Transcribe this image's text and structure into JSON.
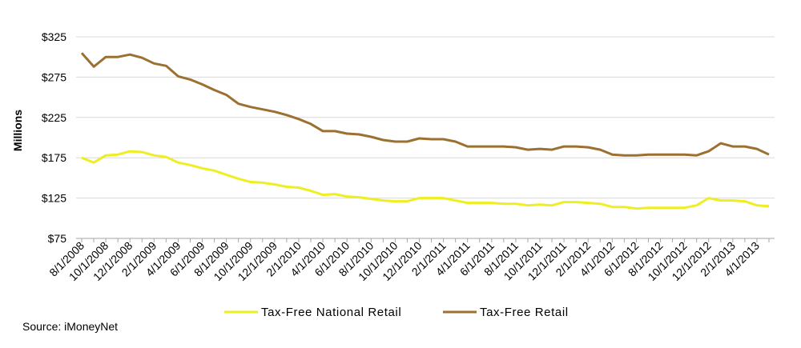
{
  "chart_data": {
    "type": "line",
    "ylabel": "Millions",
    "ylim": [
      75,
      325
    ],
    "yticks": [
      "$75",
      "$125",
      "$175",
      "$225",
      "$275",
      "$325"
    ],
    "ytick_values": [
      75,
      125,
      175,
      225,
      275,
      325
    ],
    "grid": "horizontal",
    "legend_position": "bottom",
    "x": [
      "8/1/2008",
      "9/1/2008",
      "10/1/2008",
      "11/1/2008",
      "12/1/2008",
      "1/1/2009",
      "2/1/2009",
      "3/1/2009",
      "4/1/2009",
      "5/1/2009",
      "6/1/2009",
      "7/1/2009",
      "8/1/2009",
      "9/1/2009",
      "10/1/2009",
      "11/1/2009",
      "12/1/2009",
      "1/1/2010",
      "2/1/2010",
      "3/1/2010",
      "4/1/2010",
      "5/1/2010",
      "6/1/2010",
      "7/1/2010",
      "8/1/2010",
      "9/1/2010",
      "10/1/2010",
      "11/1/2010",
      "12/1/2010",
      "1/1/2011",
      "2/1/2011",
      "3/1/2011",
      "4/1/2011",
      "5/1/2011",
      "6/1/2011",
      "7/1/2011",
      "8/1/2011",
      "9/1/2011",
      "10/1/2011",
      "11/1/2011",
      "12/1/2011",
      "1/1/2012",
      "2/1/2012",
      "3/1/2012",
      "4/1/2012",
      "5/1/2012",
      "6/1/2012",
      "7/1/2012",
      "8/1/2012",
      "9/1/2012",
      "10/1/2012",
      "11/1/2012",
      "12/1/2012",
      "1/1/2013",
      "2/1/2013",
      "3/1/2013",
      "4/1/2013",
      "5/1/2013"
    ],
    "xtick_labels": [
      "8/1/2008",
      "10/1/2008",
      "12/1/2008",
      "2/1/2009",
      "4/1/2009",
      "6/1/2009",
      "8/1/2009",
      "10/1/2009",
      "12/1/2009",
      "2/1/2010",
      "4/1/2010",
      "6/1/2010",
      "8/1/2010",
      "10/1/2010",
      "12/1/2010",
      "2/1/2011",
      "4/1/2011",
      "6/1/2011",
      "8/1/2011",
      "10/1/2011",
      "12/1/2011",
      "2/1/2012",
      "4/1/2012",
      "6/1/2012",
      "8/1/2012",
      "10/1/2012",
      "12/1/2012",
      "2/1/2013",
      "4/1/2013"
    ],
    "series": [
      {
        "name": "Tax-Free National Retail",
        "color": "#eeee22",
        "values": [
          175,
          169,
          178,
          179,
          183,
          182,
          178,
          176,
          169,
          166,
          162,
          159,
          154,
          149,
          145,
          144,
          142,
          139,
          138,
          134,
          129,
          130,
          127,
          126,
          124,
          122,
          121,
          121,
          125,
          125,
          125,
          122,
          119,
          119,
          119,
          118,
          118,
          116,
          117,
          116,
          120,
          120,
          119,
          118,
          114,
          114,
          112,
          113,
          113,
          113,
          113,
          116,
          125,
          122,
          122,
          121,
          116,
          115
        ]
      },
      {
        "name": "Tax-Free Retail",
        "color": "#9c7030",
        "values": [
          305,
          288,
          300,
          300,
          303,
          299,
          292,
          289,
          276,
          272,
          266,
          259,
          253,
          242,
          238,
          235,
          232,
          228,
          223,
          217,
          208,
          208,
          205,
          204,
          201,
          197,
          195,
          195,
          199,
          198,
          198,
          195,
          189,
          189,
          189,
          189,
          188,
          185,
          186,
          185,
          189,
          189,
          188,
          185,
          179,
          178,
          178,
          179,
          179,
          179,
          179,
          178,
          183,
          193,
          189,
          189,
          186,
          179
        ]
      }
    ]
  },
  "source": "Source: iMoneyNet"
}
